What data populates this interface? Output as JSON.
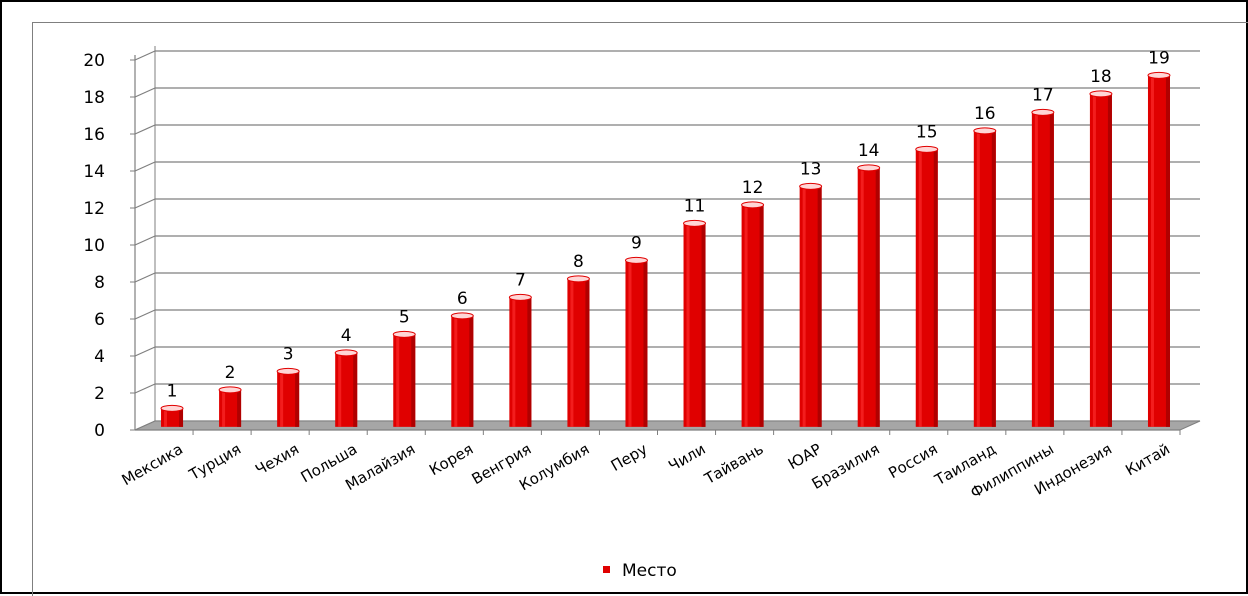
{
  "chart_data": {
    "type": "bar",
    "categories": [
      "Мексика",
      "Турция",
      "Чехия",
      "Польша",
      "Малайзия",
      "Корея",
      "Венгрия",
      "Колумбия",
      "Перу",
      "Чили",
      "Тайвань",
      "ЮАР",
      "Бразилия",
      "Россия",
      "Таиланд",
      "Филиппины",
      "Индонезия",
      "Китай"
    ],
    "series": [
      {
        "name": "Место",
        "values": [
          1,
          2,
          3,
          4,
          5,
          6,
          7,
          8,
          9,
          11,
          12,
          13,
          14,
          15,
          16,
          17,
          18,
          19
        ],
        "color": "#e00000"
      }
    ],
    "ylim": [
      0,
      20
    ],
    "yticks": [
      "0",
      "2",
      "4",
      "6",
      "8",
      "10",
      "12",
      "14",
      "16",
      "18",
      "20"
    ],
    "data_labels": [
      "1",
      "2",
      "3",
      "4",
      "5",
      "6",
      "7",
      "8",
      "9",
      "11",
      "12",
      "13",
      "14",
      "15",
      "16",
      "17",
      "18",
      "19"
    ],
    "grid": true,
    "legend_position": "bottom",
    "style": "3d-column"
  }
}
